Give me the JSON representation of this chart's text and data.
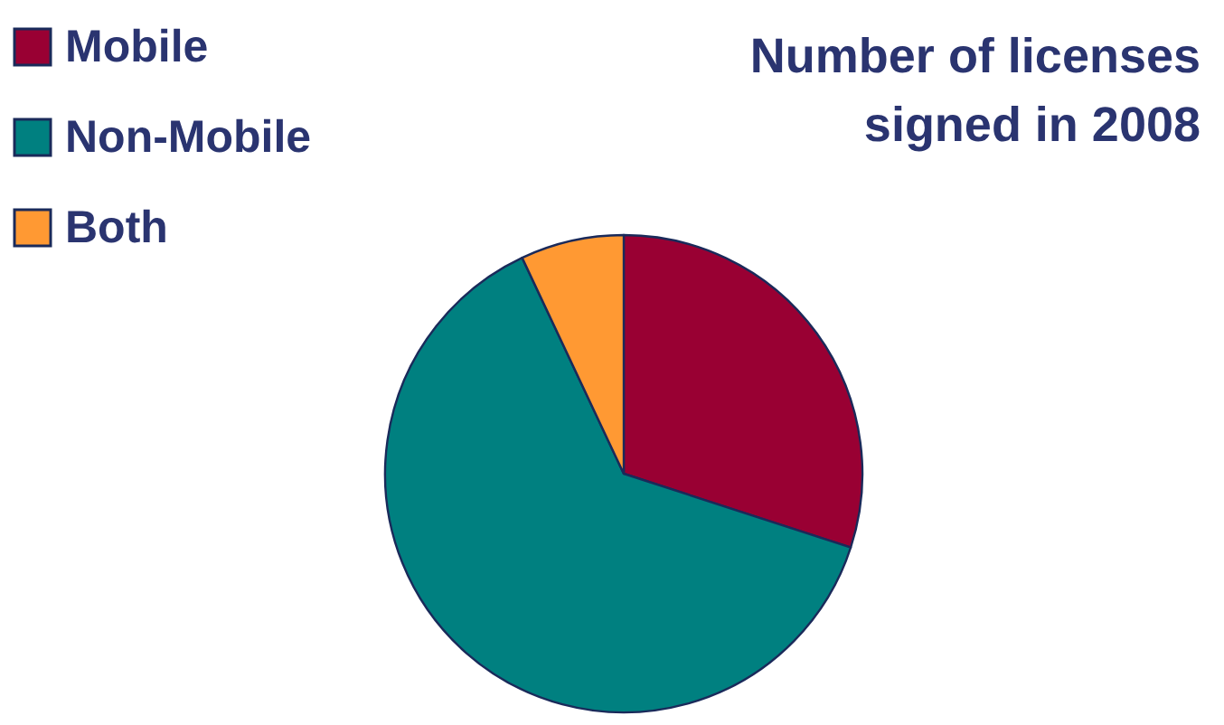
{
  "chart_data": {
    "type": "pie",
    "title": "Number of licenses\nsigned in 2008",
    "categories": [
      "Mobile",
      "Non-Mobile",
      "Both"
    ],
    "values": [
      30,
      63,
      7
    ],
    "colors": [
      "#990033",
      "#008080",
      "#ff9933"
    ],
    "legend": "top left"
  }
}
